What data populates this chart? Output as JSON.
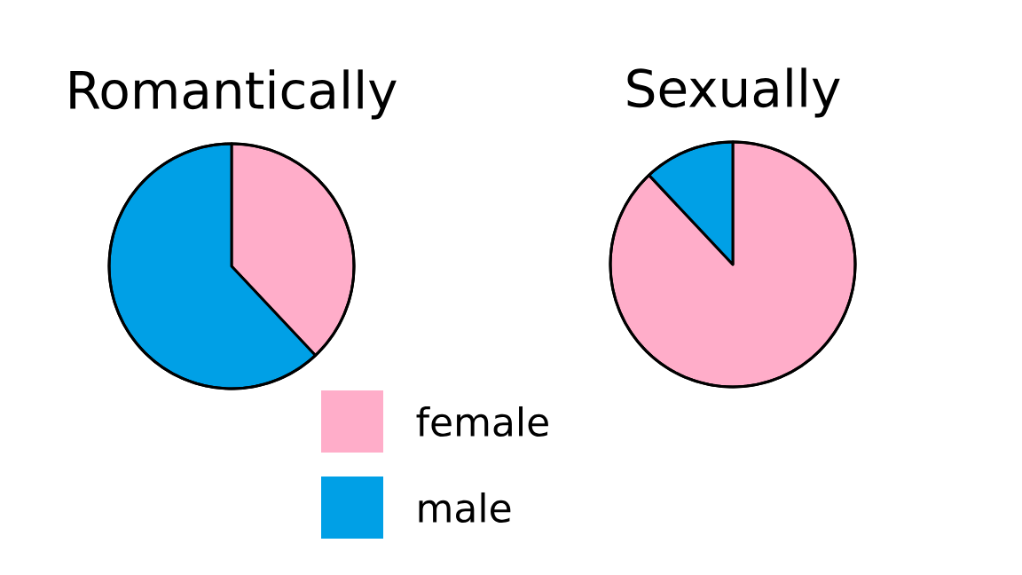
{
  "chart_data": [
    {
      "type": "pie",
      "title": "Romantically",
      "categories": [
        "female",
        "male"
      ],
      "values": [
        38,
        62
      ],
      "colors": [
        "#ffadc9",
        "#00a0e6"
      ],
      "legend": "bottom"
    },
    {
      "type": "pie",
      "title": "Sexually",
      "categories": [
        null,
        null
      ],
      "values": [
        88,
        12
      ],
      "colors": [
        "#ffadc9",
        "#00a0e6"
      ]
    }
  ]
}
